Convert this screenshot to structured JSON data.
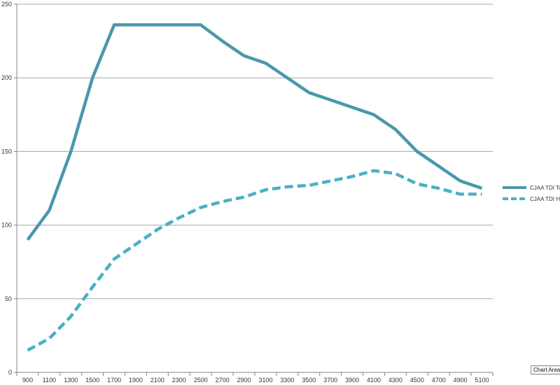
{
  "chart_data": {
    "type": "line",
    "categories": [
      "900",
      "1100",
      "1300",
      "1500",
      "1700",
      "1900",
      "2100",
      "2300",
      "2500",
      "2700",
      "2900",
      "3100",
      "3300",
      "3500",
      "3700",
      "3900",
      "4100",
      "4300",
      "4500",
      "4700",
      "4900",
      "5100"
    ],
    "series": [
      {
        "name": "CJAA TDI Toqrue",
        "style": "solid",
        "color": "#4a97ad",
        "values": [
          90,
          110,
          150,
          200,
          236,
          236,
          236,
          236,
          236,
          225,
          215,
          210,
          200,
          190,
          185,
          180,
          175,
          165,
          150,
          140,
          130,
          125
        ]
      },
      {
        "name": "CJAA TDI HP",
        "style": "dashed",
        "color": "#4ab0c4",
        "values": [
          15,
          23,
          38,
          58,
          77,
          87,
          97,
          105,
          112,
          116,
          119,
          124,
          126,
          127,
          130,
          133,
          137,
          135,
          128,
          125,
          121,
          121
        ]
      }
    ],
    "yticks": [
      "0",
      "50",
      "100",
      "150",
      "200",
      "250"
    ],
    "ylim": [
      0,
      250
    ],
    "grid": true,
    "legend_position": "right"
  },
  "tooltip": {
    "label": "Chart Area"
  }
}
